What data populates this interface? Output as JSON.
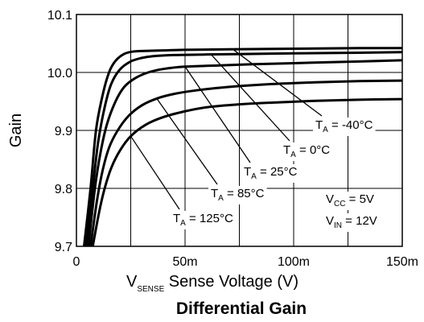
{
  "chart_data": {
    "type": "line",
    "title": "Differential Gain",
    "xlabel": {
      "main": "V",
      "sub": "SENSE",
      "rest": "Sense Voltage (V)"
    },
    "ylabel": "Gain",
    "xlim": [
      0,
      0.15
    ],
    "ylim": [
      9.7,
      10.1
    ],
    "x_ticks": [
      0,
      0.05,
      0.1,
      0.15
    ],
    "x_tick_labels": [
      "0",
      "50m",
      "100m",
      "150m"
    ],
    "y_ticks": [
      9.7,
      9.8,
      9.9,
      10.0,
      10.1
    ],
    "y_tick_labels": [
      "9.7",
      "9.8",
      "9.9",
      "10.0",
      "10.1"
    ],
    "grid": true,
    "line_color": "#000000",
    "series": [
      {
        "name": {
          "pre": "T",
          "sub": "A",
          "post": " = -40°C"
        },
        "x": [
          0.0035,
          0.0065,
          0.009,
          0.012,
          0.015,
          0.018,
          0.022,
          0.026,
          0.03,
          0.04,
          0.05,
          0.07,
          0.1,
          0.13,
          0.15
        ],
        "y": [
          9.7,
          9.8,
          9.9,
          9.96,
          10.0,
          10.02,
          10.032,
          10.036,
          10.037,
          10.038,
          10.039,
          10.04,
          10.041,
          10.042,
          10.042
        ]
      },
      {
        "name": {
          "pre": "T",
          "sub": "A",
          "post": " = 0°C"
        },
        "x": [
          0.0045,
          0.0075,
          0.01,
          0.013,
          0.016,
          0.02,
          0.025,
          0.03,
          0.035,
          0.045,
          0.06,
          0.08,
          0.1,
          0.13,
          0.15
        ],
        "y": [
          9.7,
          9.8,
          9.88,
          9.94,
          9.98,
          10.005,
          10.019,
          10.025,
          10.028,
          10.03,
          10.031,
          10.032,
          10.033,
          10.034,
          10.035
        ]
      },
      {
        "name": {
          "pre": "T",
          "sub": "A",
          "post": " = 25°C"
        },
        "x": [
          0.0055,
          0.0085,
          0.011,
          0.014,
          0.018,
          0.022,
          0.027,
          0.033,
          0.04,
          0.05,
          0.065,
          0.08,
          0.1,
          0.13,
          0.15
        ],
        "y": [
          9.7,
          9.8,
          9.86,
          9.91,
          9.95,
          9.975,
          9.99,
          10.0,
          10.006,
          10.01,
          10.012,
          10.014,
          10.016,
          10.019,
          10.021
        ]
      },
      {
        "name": {
          "pre": "T",
          "sub": "A",
          "post": " = 85°C"
        },
        "x": [
          0.0065,
          0.0095,
          0.012,
          0.015,
          0.019,
          0.024,
          0.03,
          0.037,
          0.045,
          0.055,
          0.07,
          0.09,
          0.11,
          0.13,
          0.15
        ],
        "y": [
          9.7,
          9.78,
          9.83,
          9.87,
          9.9,
          9.925,
          9.943,
          9.955,
          9.963,
          9.969,
          9.975,
          9.98,
          9.983,
          9.985,
          9.986
        ]
      },
      {
        "name": {
          "pre": "T",
          "sub": "A",
          "post": " = 125°C"
        },
        "x": [
          0.0075,
          0.0105,
          0.013,
          0.016,
          0.02,
          0.025,
          0.032,
          0.04,
          0.05,
          0.06,
          0.075,
          0.09,
          0.11,
          0.13,
          0.15
        ],
        "y": [
          9.7,
          9.76,
          9.8,
          9.835,
          9.865,
          9.89,
          9.91,
          9.923,
          9.933,
          9.94,
          9.945,
          9.948,
          9.951,
          9.953,
          9.954
        ]
      }
    ],
    "conditions": [
      {
        "pre": "V",
        "sub": "CC",
        "post": " = 5V"
      },
      {
        "pre": "V",
        "sub": "IN",
        "post": " = 12V"
      }
    ]
  }
}
